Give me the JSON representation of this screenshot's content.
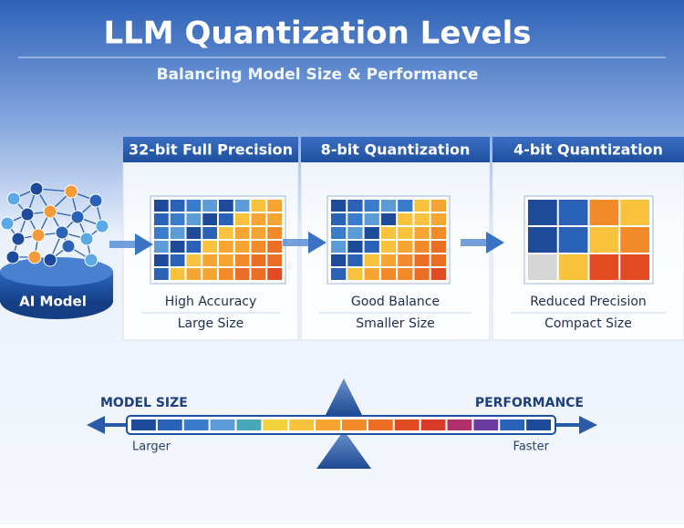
{
  "header": {
    "title": "LLM Quantization Levels",
    "subtitle": "Balancing Model Size & Performance"
  },
  "model": {
    "label": "AI Model"
  },
  "panels": [
    {
      "title": "32-bit Full Precision",
      "line1": "High Accuracy",
      "line2": "Large Size"
    },
    {
      "title": "8-bit Quantization",
      "line1": "Good Balance",
      "line2": "Smaller Size"
    },
    {
      "title": "4-bit Quantization",
      "line1": "Reduced Precision",
      "line2": "Compact Size"
    }
  ],
  "scale": {
    "left_title": "MODEL SIZE",
    "left_sub": "Larger",
    "right_title": "PERFORMANCE",
    "right_sub": "Faster"
  }
}
